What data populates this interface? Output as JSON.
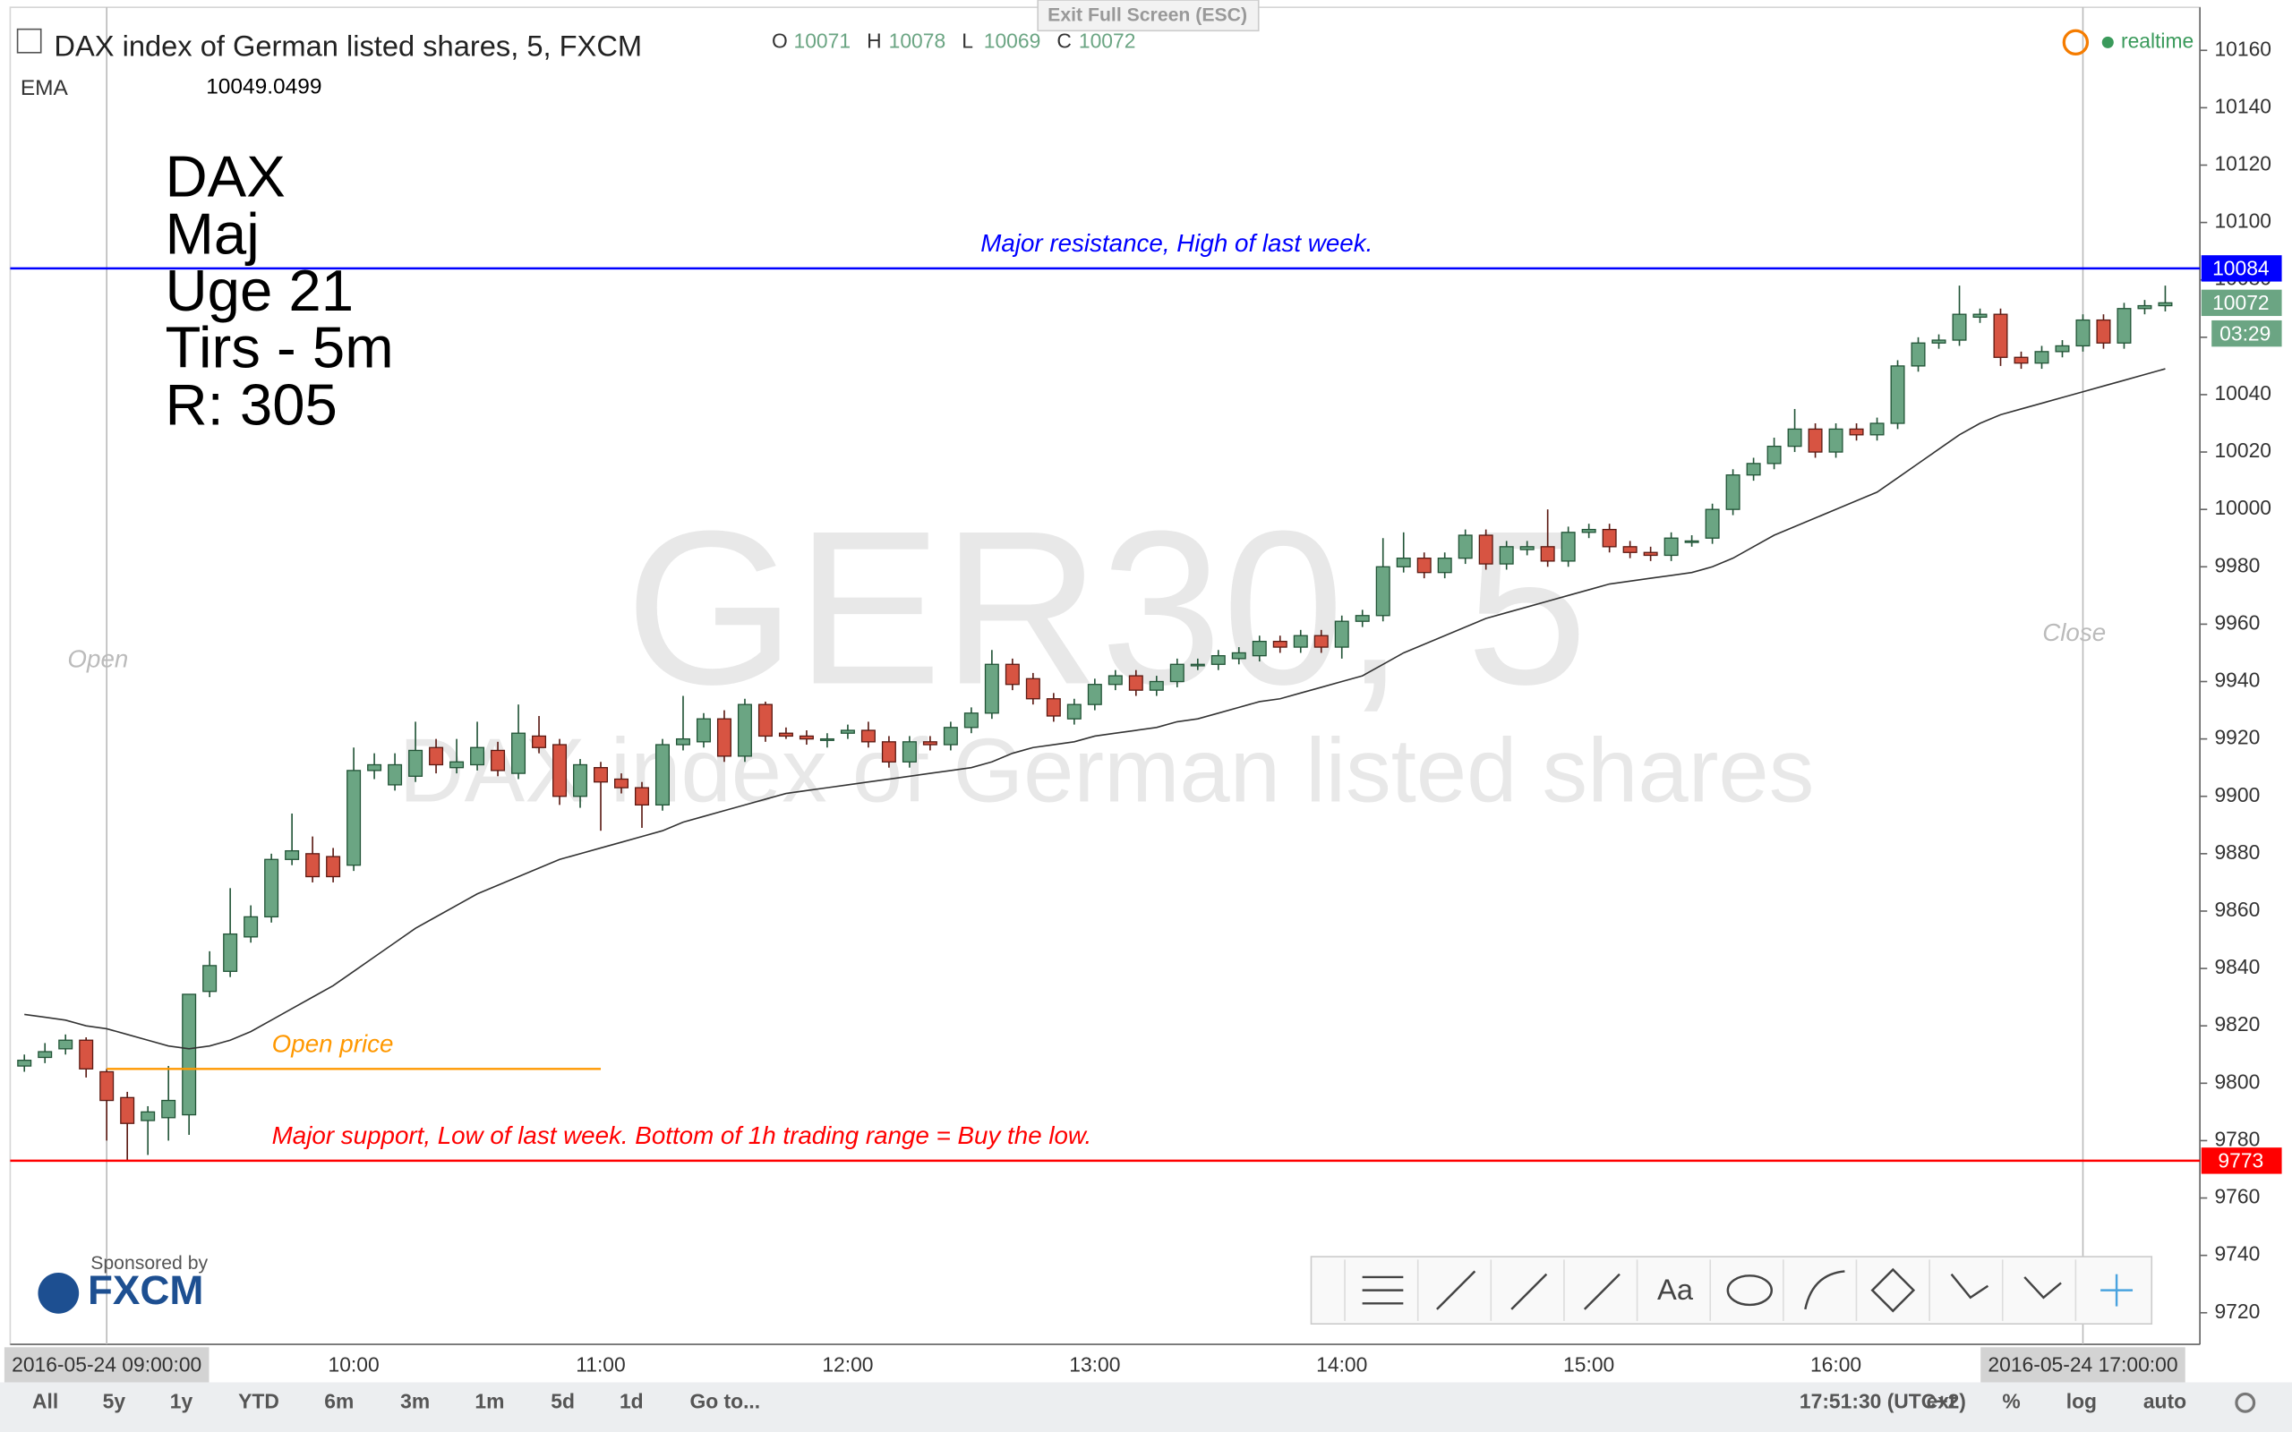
{
  "chart_data": {
    "type": "candlestick",
    "title": "DAX index of German listed shares, 5, FXCM",
    "watermark": [
      "GER30, 5",
      "DAX index of German listed shares"
    ],
    "up_color": "#6ba583",
    "down_color": "#d75442",
    "categories": [
      null,
      null,
      null,
      null,
      "2016-05-24 09:00:00",
      null,
      null,
      null,
      null,
      null,
      null,
      null,
      null,
      null,
      null,
      null,
      "10:00",
      null,
      null,
      null,
      null,
      null,
      null,
      null,
      null,
      null,
      null,
      null,
      "11:00",
      null,
      null,
      null,
      null,
      null,
      null,
      null,
      null,
      null,
      null,
      null,
      "12:00",
      null,
      null,
      null,
      null,
      null,
      null,
      null,
      null,
      null,
      null,
      null,
      "13:00",
      null,
      null,
      null,
      null,
      null,
      null,
      null,
      null,
      null,
      null,
      null,
      "14:00",
      null,
      null,
      null,
      null,
      null,
      null,
      null,
      null,
      null,
      null,
      null,
      "15:00",
      null,
      null,
      null,
      null,
      null,
      null,
      null,
      null,
      null,
      null,
      null,
      "16:00",
      null,
      null,
      null,
      null,
      null,
      null,
      null,
      null,
      null,
      null,
      null,
      "2016-05-24 17:00:00",
      null,
      null,
      null,
      null
    ],
    "series": [
      {
        "name": "O",
        "values": [
          9806,
          9809,
          9812,
          9815,
          9804,
          9795,
          9787,
          9788,
          9789,
          9832,
          9839,
          9851,
          9858,
          9878,
          9880,
          9879,
          9876,
          9909,
          9904,
          9907,
          9917,
          9910,
          9911,
          9916,
          9908,
          9921,
          9918,
          9900,
          9910,
          9906,
          9903,
          9897,
          9918,
          9919,
          9927,
          9914,
          9932,
          9922,
          9921,
          9920,
          9922,
          9923,
          9919,
          9912,
          9919,
          9918,
          9924,
          9929,
          9946,
          9941,
          9934,
          9927,
          9932,
          9939,
          9942,
          9937,
          9940,
          9946,
          9946,
          9948,
          9949,
          9954,
          9952,
          9956,
          9952,
          9961,
          9963,
          9980,
          9983,
          9978,
          9983,
          9991,
          9981,
          9986,
          9987,
          9982,
          9992,
          9993,
          9987,
          9985,
          9984,
          9989,
          9990,
          10000,
          10012,
          10016,
          10022,
          10028,
          10020,
          10028,
          10026,
          10030,
          10050,
          10058,
          10059,
          10067,
          10068,
          10053,
          10051,
          10055,
          10057,
          10066,
          10058,
          10070,
          10071
        ]
      },
      {
        "name": "H",
        "values": [
          9810,
          9814,
          9817,
          9816,
          9805,
          9797,
          9792,
          9806,
          9831,
          9846,
          9868,
          9862,
          9880,
          9894,
          9886,
          9882,
          9917,
          9915,
          9915,
          9926,
          9920,
          9920,
          9926,
          9919,
          9932,
          9928,
          9920,
          9913,
          9912,
          9908,
          9905,
          9920,
          9935,
          9929,
          9930,
          9934,
          9933,
          9924,
          9923,
          9922,
          9925,
          9926,
          9921,
          9921,
          9921,
          9926,
          9931,
          9951,
          9948,
          9943,
          9936,
          9934,
          9941,
          9944,
          9944,
          9942,
          9948,
          9948,
          9951,
          9952,
          9956,
          9956,
          9958,
          9958,
          9963,
          9965,
          9990,
          9992,
          9985,
          9985,
          9993,
          9993,
          9989,
          9989,
          10000,
          9994,
          9995,
          9995,
          9989,
          9987,
          9992,
          9991,
          10002,
          10014,
          10018,
          10025,
          10035,
          10030,
          10030,
          10030,
          10032,
          10052,
          10060,
          10061,
          10078,
          10070,
          10070,
          10055,
          10057,
          10059,
          10068,
          10068,
          10072,
          10073,
          10078
        ]
      },
      {
        "name": "L",
        "values": [
          9804,
          9807,
          9810,
          9802,
          9780,
          9773,
          9775,
          9780,
          9782,
          9830,
          9837,
          9849,
          9856,
          9876,
          9870,
          9870,
          9874,
          9906,
          9902,
          9905,
          9908,
          9908,
          9909,
          9907,
          9906,
          9915,
          9897,
          9896,
          9888,
          9901,
          9889,
          9895,
          9916,
          9917,
          9912,
          9912,
          9919,
          9920,
          9918,
          9917,
          9920,
          9917,
          9910,
          9910,
          9916,
          9916,
          9922,
          9927,
          9937,
          9932,
          9926,
          9925,
          9930,
          9937,
          9935,
          9935,
          9938,
          9944,
          9944,
          9946,
          9947,
          9950,
          9950,
          9950,
          9948,
          9959,
          9961,
          9978,
          9976,
          9976,
          9981,
          9979,
          9979,
          9984,
          9980,
          9980,
          9990,
          9985,
          9983,
          9982,
          9982,
          9987,
          9988,
          9998,
          10010,
          10014,
          10020,
          10018,
          10018,
          10024,
          10024,
          10028,
          10048,
          10056,
          10057,
          10065,
          10050,
          10049,
          10049,
          10053,
          10055,
          10056,
          10056,
          10068,
          10069
        ]
      },
      {
        "name": "C",
        "values": [
          9808,
          9811,
          9815,
          9805,
          9794,
          9786,
          9790,
          9794,
          9831,
          9841,
          9852,
          9858,
          9878,
          9881,
          9872,
          9872,
          9909,
          9911,
          9911,
          9916,
          9911,
          9912,
          9917,
          9909,
          9922,
          9917,
          9900,
          9911,
          9905,
          9903,
          9897,
          9918,
          9920,
          9927,
          9914,
          9932,
          9921,
          9921,
          9920,
          9920,
          9923,
          9919,
          9912,
          9919,
          9918,
          9924,
          9929,
          9946,
          9939,
          9934,
          9928,
          9932,
          9939,
          9942,
          9937,
          9940,
          9946,
          9946,
          9949,
          9950,
          9954,
          9952,
          9956,
          9952,
          9961,
          9963,
          9980,
          9983,
          9978,
          9983,
          9991,
          9981,
          9987,
          9987,
          9982,
          9992,
          9993,
          9987,
          9985,
          9984,
          9990,
          9989,
          10000,
          10012,
          10016,
          10022,
          10028,
          10020,
          10028,
          10026,
          10030,
          10050,
          10058,
          10059,
          10068,
          10068,
          10053,
          10051,
          10055,
          10057,
          10066,
          10058,
          10070,
          10071,
          10072
        ]
      },
      {
        "name": "EMA",
        "color": "#333333",
        "values": [
          9824,
          9823,
          9822,
          9820,
          9819,
          9817,
          9815,
          9813,
          9812,
          9813,
          9815,
          9818,
          9822,
          9826,
          9830,
          9834,
          9839,
          9844,
          9849,
          9854,
          9858,
          9862,
          9866,
          9869,
          9872,
          9875,
          9878,
          9880,
          9882,
          9884,
          9886,
          9888,
          9891,
          9893,
          9895,
          9897,
          9899,
          9901,
          9902,
          9903,
          9904,
          9905,
          9906,
          9907,
          9908,
          9909,
          9910,
          9912,
          9915,
          9917,
          9918,
          9919,
          9921,
          9922,
          9923,
          9924,
          9926,
          9927,
          9929,
          9931,
          9933,
          9934,
          9936,
          9938,
          9940,
          9942,
          9946,
          9950,
          9953,
          9956,
          9959,
          9962,
          9964,
          9966,
          9968,
          9970,
          9972,
          9974,
          9975,
          9976,
          9977,
          9978,
          9980,
          9983,
          9987,
          9991,
          9994,
          9997,
          10000,
          10003,
          10006,
          10011,
          10016,
          10021,
          10026,
          10030,
          10033,
          10035,
          10037,
          10039,
          10041,
          10043,
          10045,
          10047,
          10049
        ]
      }
    ],
    "ema_readout": "10049.0499",
    "ylim": [
      9709,
      10175
    ],
    "yticks": [
      9720,
      9740,
      9760,
      9780,
      9800,
      9820,
      9840,
      9860,
      9880,
      9900,
      9920,
      9940,
      9960,
      9980,
      10000,
      10020,
      10040,
      10060,
      10080,
      10100,
      10120,
      10140,
      10160
    ],
    "hlines": [
      {
        "value": 10084,
        "color": "#0000ff",
        "label": "Major resistance, High of last week."
      },
      {
        "value": 9773,
        "color": "#ff0000",
        "label": "Major support, Low of last week. Bottom of 1h trading range = Buy the low."
      }
    ],
    "open_price": {
      "value": 9805,
      "color": "#ff9800",
      "label": "Open price"
    },
    "vlines": [
      {
        "label": "Open"
      },
      {
        "label": "Close"
      }
    ],
    "note_lines": [
      "DAX",
      "Maj",
      "Uge 21",
      "Tirs - 5m",
      "R: 305"
    ],
    "countdown": "03:29"
  },
  "ui": {
    "exit_fullscreen": "Exit Full Screen (ESC)",
    "status": "realtime",
    "sponsor": "Sponsored by",
    "sponsor_logo": "FXCM",
    "toolbar_text": "Aa",
    "range_buttons": [
      "All",
      "5y",
      "1y",
      "YTD",
      "6m",
      "3m",
      "1m",
      "5d",
      "1d",
      "Go to..."
    ],
    "clock": "17:51:30 (UTC+2)",
    "options": [
      "ext",
      "%",
      "log",
      "auto"
    ]
  }
}
